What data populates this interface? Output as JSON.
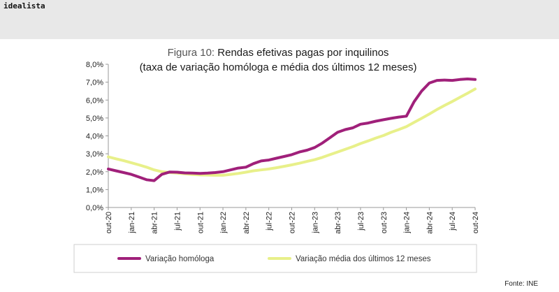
{
  "header": {
    "brand": "idealista"
  },
  "chart_data": {
    "type": "line",
    "title_prefix": "Figura 10:",
    "title_main": " Rendas efetivas pagas por inquilinos",
    "subtitle": "(taxa de variação homóloga e média dos últimos 12 meses)",
    "x_ticks": [
      "out-20",
      "jan-21",
      "abr-21",
      "jul-21",
      "out-21",
      "jan-22",
      "abr-22",
      "jul-22",
      "out-22",
      "jan-23",
      "abr-23",
      "jul-23",
      "out-23",
      "jan-24",
      "abr-24",
      "jul-24",
      "out-24"
    ],
    "y_ticks": [
      "0,0%",
      "1,0%",
      "2,0%",
      "3,0%",
      "4,0%",
      "5,0%",
      "6,0%",
      "7,0%",
      "8,0%"
    ],
    "ylim": [
      0,
      8
    ],
    "x": [
      "2020-10",
      "2020-11",
      "2020-12",
      "2021-01",
      "2021-02",
      "2021-03",
      "2021-04",
      "2021-05",
      "2021-06",
      "2021-07",
      "2021-08",
      "2021-09",
      "2021-10",
      "2021-11",
      "2021-12",
      "2022-01",
      "2022-02",
      "2022-03",
      "2022-04",
      "2022-05",
      "2022-06",
      "2022-07",
      "2022-08",
      "2022-09",
      "2022-10",
      "2022-11",
      "2022-12",
      "2023-01",
      "2023-02",
      "2023-03",
      "2023-04",
      "2023-05",
      "2023-06",
      "2023-07",
      "2023-08",
      "2023-09",
      "2023-10",
      "2023-11",
      "2023-12",
      "2024-01",
      "2024-02",
      "2024-03",
      "2024-04",
      "2024-05",
      "2024-06",
      "2024-07",
      "2024-08",
      "2024-09",
      "2024-10"
    ],
    "series": [
      {
        "name": "Variação homóloga",
        "color": "#a0207a",
        "values": [
          2.15,
          2.05,
          1.95,
          1.85,
          1.7,
          1.55,
          1.5,
          1.85,
          1.98,
          1.97,
          1.93,
          1.92,
          1.9,
          1.92,
          1.95,
          2.0,
          2.1,
          2.2,
          2.25,
          2.45,
          2.6,
          2.65,
          2.75,
          2.85,
          2.95,
          3.1,
          3.2,
          3.35,
          3.6,
          3.9,
          4.2,
          4.35,
          4.45,
          4.65,
          4.72,
          4.82,
          4.9,
          4.98,
          5.05,
          5.1,
          5.9,
          6.5,
          6.95,
          7.1,
          7.12,
          7.1,
          7.15,
          7.18,
          7.15
        ]
      },
      {
        "name": "Variação média dos últimos 12 meses",
        "color": "#e8f08a",
        "values": [
          2.83,
          2.72,
          2.62,
          2.5,
          2.38,
          2.25,
          2.1,
          2.0,
          1.95,
          1.92,
          1.88,
          1.84,
          1.82,
          1.81,
          1.8,
          1.8,
          1.85,
          1.9,
          1.97,
          2.05,
          2.1,
          2.15,
          2.22,
          2.3,
          2.38,
          2.47,
          2.57,
          2.67,
          2.8,
          2.95,
          3.1,
          3.25,
          3.4,
          3.57,
          3.72,
          3.88,
          4.02,
          4.2,
          4.35,
          4.52,
          4.75,
          4.98,
          5.22,
          5.47,
          5.7,
          5.92,
          6.15,
          6.38,
          6.62
        ]
      }
    ]
  },
  "source": "Fonte: INE"
}
